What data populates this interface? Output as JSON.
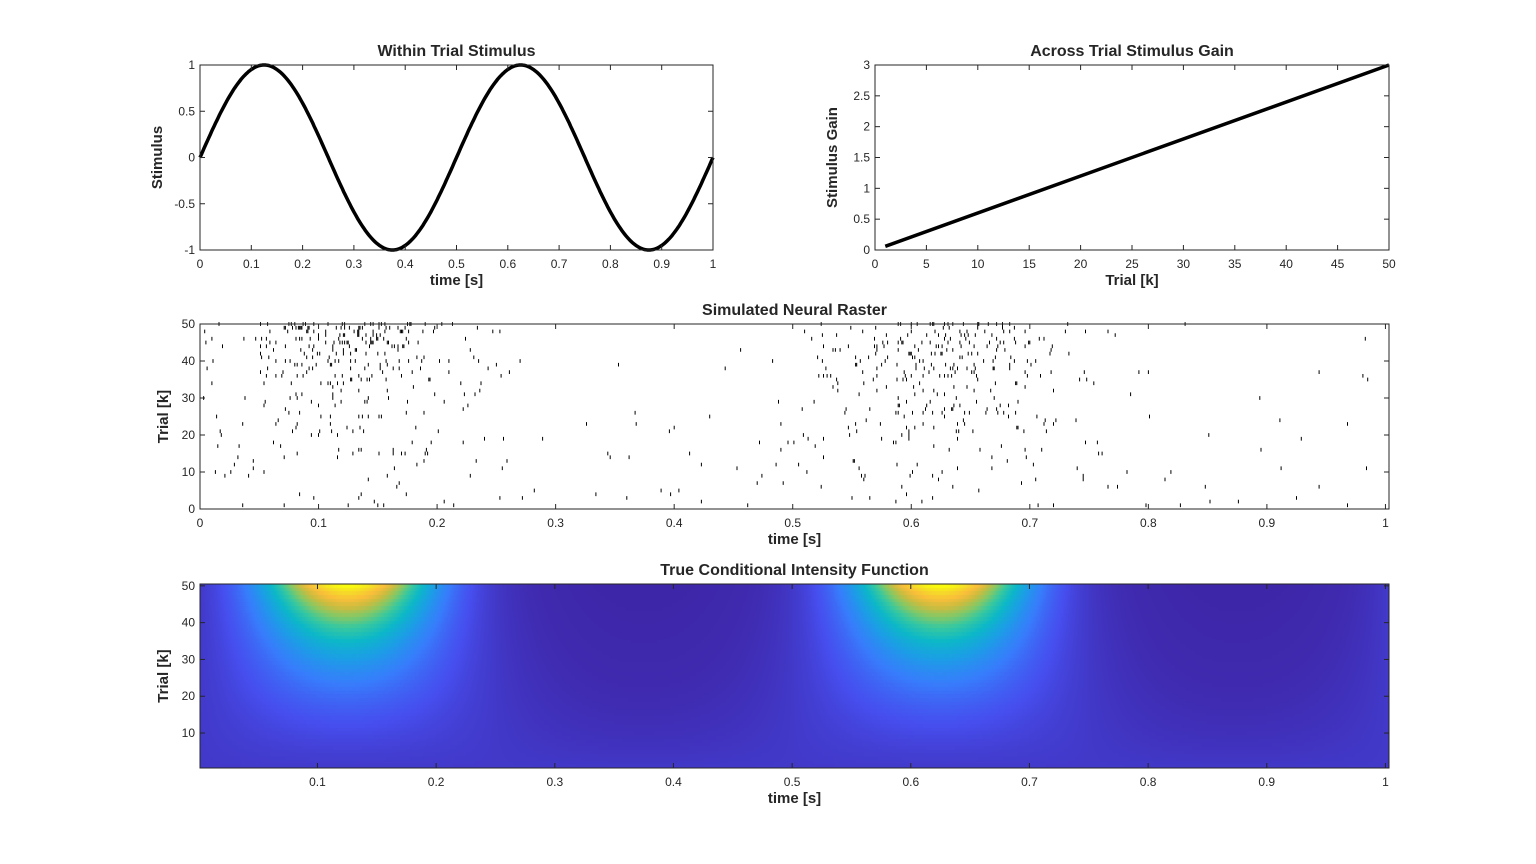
{
  "chart_data": [
    {
      "type": "line",
      "title": "Within Trial Stimulus",
      "xlabel": "time [s]",
      "ylabel": "Stimulus",
      "xlim": [
        0,
        1
      ],
      "ylim": [
        -1,
        1
      ],
      "xticks": [
        "0",
        "0.1",
        "0.2",
        "0.3",
        "0.4",
        "0.5",
        "0.6",
        "0.7",
        "0.8",
        "0.9",
        "1"
      ],
      "yticks": [
        "-1",
        "-0.5",
        "0",
        "0.5",
        "1"
      ],
      "function": "sin(2*pi*2*t)",
      "frequency_hz": 2,
      "color": "#000000"
    },
    {
      "type": "line",
      "title": "Across Trial Stimulus Gain",
      "xlabel": "Trial [k]",
      "ylabel": "Stimulus Gain",
      "xlim": [
        0,
        50
      ],
      "ylim": [
        0,
        3
      ],
      "xticks": [
        "0",
        "5",
        "10",
        "15",
        "20",
        "25",
        "30",
        "35",
        "40",
        "45",
        "50"
      ],
      "yticks": [
        "0",
        "0.5",
        "1",
        "1.5",
        "2",
        "2.5",
        "3"
      ],
      "x": [
        1,
        50
      ],
      "y": [
        0.06,
        3
      ],
      "color": "#000000"
    },
    {
      "type": "scatter",
      "subtype": "raster",
      "title": "Simulated Neural Raster",
      "xlabel": "time [s]",
      "ylabel": "Trial [k]",
      "xlim": [
        0,
        1
      ],
      "ylim": [
        0,
        50
      ],
      "xticks": [
        "0",
        "0.1",
        "0.2",
        "0.3",
        "0.4",
        "0.5",
        "0.6",
        "0.7",
        "0.8",
        "0.9",
        "1"
      ],
      "yticks": [
        "0",
        "10",
        "20",
        "30",
        "40",
        "50"
      ],
      "trials": 50,
      "color": "#000000"
    },
    {
      "type": "heatmap",
      "title": "True Conditional Intensity Function",
      "xlabel": "time [s]",
      "ylabel": "Trial [k]",
      "xlim": [
        0,
        1
      ],
      "ylim": [
        1,
        50
      ],
      "xticks": [
        "0.1",
        "0.2",
        "0.3",
        "0.4",
        "0.5",
        "0.6",
        "0.7",
        "0.8",
        "0.9",
        "1"
      ],
      "yticks": [
        "10",
        "20",
        "30",
        "40",
        "50"
      ],
      "colormap": "parula"
    }
  ]
}
